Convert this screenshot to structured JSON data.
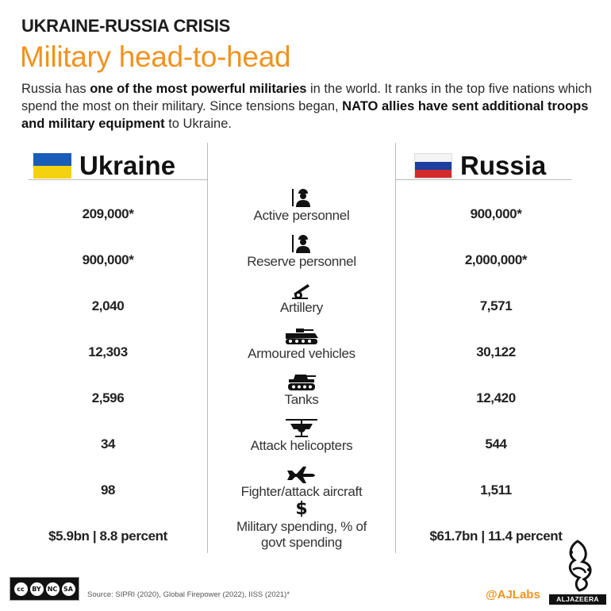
{
  "header": {
    "kicker": "UKRAINE-RUSSIA CRISIS",
    "title": "Military head-to-head",
    "desc": {
      "p1": "Russia has ",
      "b1": "one of the most powerful militaries",
      "p2": " in the world. It ranks in the top five nations which spend the most on their military. Since tensions began, ",
      "b2": "NATO allies have sent additional troops and military equipment",
      "p3": " to Ukraine."
    }
  },
  "countries": {
    "ukraine": {
      "name": "Ukraine",
      "flag_colors": [
        "#1a5db8",
        "#f5d20f"
      ]
    },
    "russia": {
      "name": "Russia",
      "flag_colors": [
        "#f4f4f4",
        "#1c3fa0",
        "#d42a2a"
      ]
    }
  },
  "chart_data": {
    "type": "table",
    "columns": [
      "Ukraine",
      "Russia"
    ],
    "rows": [
      {
        "label": "Active personnel",
        "icon": "soldier-icon",
        "ukraine": "209,000*",
        "russia": "900,000*"
      },
      {
        "label": "Reserve personnel",
        "icon": "soldier-icon",
        "ukraine": "900,000*",
        "russia": "2,000,000*"
      },
      {
        "label": "Artillery",
        "icon": "artillery-icon",
        "ukraine": "2,040",
        "russia": "7,571"
      },
      {
        "label": "Armoured vehicles",
        "icon": "armoured-vehicle-icon",
        "ukraine": "12,303",
        "russia": "30,122"
      },
      {
        "label": "Tanks",
        "icon": "tank-icon",
        "ukraine": "2,596",
        "russia": "12,420"
      },
      {
        "label": "Attack helicopters",
        "icon": "helicopter-icon",
        "ukraine": "34",
        "russia": "544"
      },
      {
        "label": "Fighter/attack aircraft",
        "icon": "fighter-jet-icon",
        "ukraine": "98",
        "russia": "1,511"
      },
      {
        "label": "Military spending, % of govt spending",
        "icon": "dollar-icon",
        "ukraine": "$5.9bn | 8.8 percent",
        "russia": "$61.7bn | 11.4 percent"
      }
    ]
  },
  "footer": {
    "source": "Source: SIPRI (2020), Global Firepower (2022), IISS (2021)*",
    "handle": "@AJLabs",
    "logo_text": "ALJAZEERA",
    "cc_labels": [
      "cc",
      "BY",
      "NC",
      "SA"
    ]
  },
  "colors": {
    "accent": "#f0931f",
    "divider": "#b9b9b9"
  }
}
